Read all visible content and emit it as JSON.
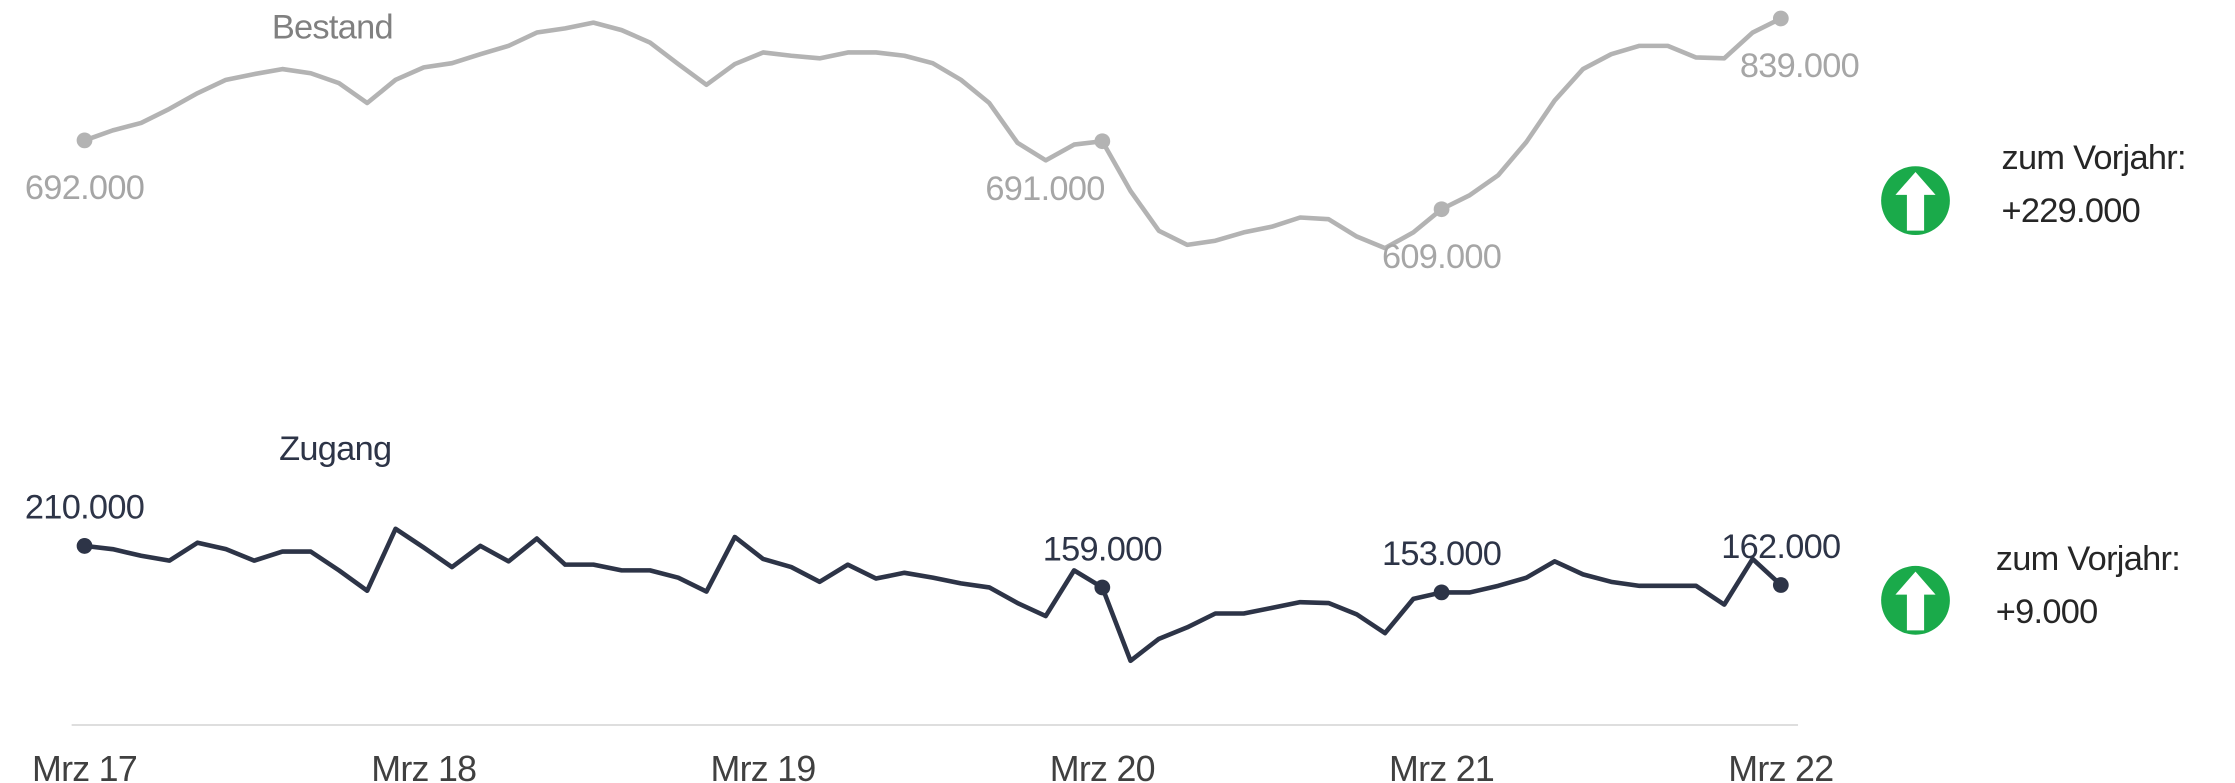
{
  "chart_data": {
    "type": "line",
    "categories": [
      "Mrz 17",
      null,
      null,
      null,
      null,
      null,
      null,
      null,
      null,
      null,
      null,
      null,
      "Mrz 18",
      null,
      null,
      null,
      null,
      null,
      null,
      null,
      null,
      null,
      null,
      null,
      "Mrz 19",
      null,
      null,
      null,
      null,
      null,
      null,
      null,
      null,
      null,
      null,
      null,
      "Mrz 20",
      null,
      null,
      null,
      null,
      null,
      null,
      null,
      null,
      null,
      null,
      null,
      "Mrz 21",
      null,
      null,
      null,
      null,
      null,
      null,
      null,
      null,
      null,
      null,
      null,
      "Mrz 22"
    ],
    "series": [
      {
        "name": "Bestand",
        "color": "#b3b3b3",
        "ylim": [
          533000,
          844000
        ],
        "values": [
          692000,
          704000,
          713000,
          730000,
          749000,
          765000,
          772000,
          778000,
          773000,
          761000,
          737000,
          765000,
          780000,
          785000,
          796000,
          806000,
          822000,
          827000,
          834000,
          825000,
          810000,
          784000,
          759000,
          784000,
          798000,
          794000,
          791000,
          798000,
          798000,
          794000,
          785000,
          765000,
          737000,
          689000,
          668000,
          687000,
          691000,
          631000,
          583000,
          566000,
          571000,
          581000,
          588000,
          599000,
          597000,
          576000,
          562000,
          581000,
          609000,
          626000,
          650000,
          690000,
          740000,
          778000,
          796000,
          806000,
          806000,
          792000,
          791000,
          822000,
          839000
        ],
        "value_labels": [
          "692.000",
          null,
          null,
          null,
          null,
          null,
          null,
          null,
          null,
          null,
          null,
          null,
          null,
          null,
          null,
          null,
          null,
          null,
          null,
          null,
          null,
          null,
          null,
          null,
          null,
          null,
          null,
          null,
          null,
          null,
          null,
          null,
          null,
          null,
          null,
          null,
          "691.000",
          null,
          null,
          null,
          null,
          null,
          null,
          null,
          null,
          null,
          null,
          null,
          "609.000",
          null,
          null,
          null,
          null,
          null,
          null,
          null,
          null,
          null,
          null,
          null,
          "839.000"
        ],
        "change": {
          "label": "zum Vorjahr:",
          "value": 229000,
          "value_label": "+229.000"
        }
      },
      {
        "name": "Zugang",
        "color": "#2d3447",
        "ylim": [
          36000,
          247000
        ],
        "values": [
          210000,
          206000,
          198000,
          192000,
          214000,
          206000,
          192000,
          203000,
          203000,
          180000,
          155000,
          231000,
          208000,
          184000,
          210000,
          191000,
          219000,
          187000,
          187000,
          180000,
          180000,
          171000,
          154000,
          221000,
          194000,
          184000,
          166000,
          187000,
          170000,
          177000,
          171000,
          164000,
          159000,
          140000,
          124000,
          180000,
          159000,
          69000,
          96000,
          110000,
          127000,
          127000,
          134000,
          141000,
          140000,
          126000,
          103000,
          145000,
          153000,
          153000,
          161000,
          171000,
          191000,
          175000,
          166000,
          161000,
          161000,
          161000,
          138000,
          194000,
          162000
        ],
        "value_labels": [
          "210.000",
          null,
          null,
          null,
          null,
          null,
          null,
          null,
          null,
          null,
          null,
          null,
          null,
          null,
          null,
          null,
          null,
          null,
          null,
          null,
          null,
          null,
          null,
          null,
          null,
          null,
          null,
          null,
          null,
          null,
          null,
          null,
          null,
          null,
          null,
          null,
          "159.000",
          null,
          null,
          null,
          null,
          null,
          null,
          null,
          null,
          null,
          null,
          null,
          "153.000",
          null,
          null,
          null,
          null,
          null,
          null,
          null,
          null,
          null,
          null,
          null,
          "162.000"
        ],
        "change": {
          "label": "zum Vorjahr:",
          "value": 9000,
          "value_label": "+9.000"
        }
      }
    ]
  }
}
